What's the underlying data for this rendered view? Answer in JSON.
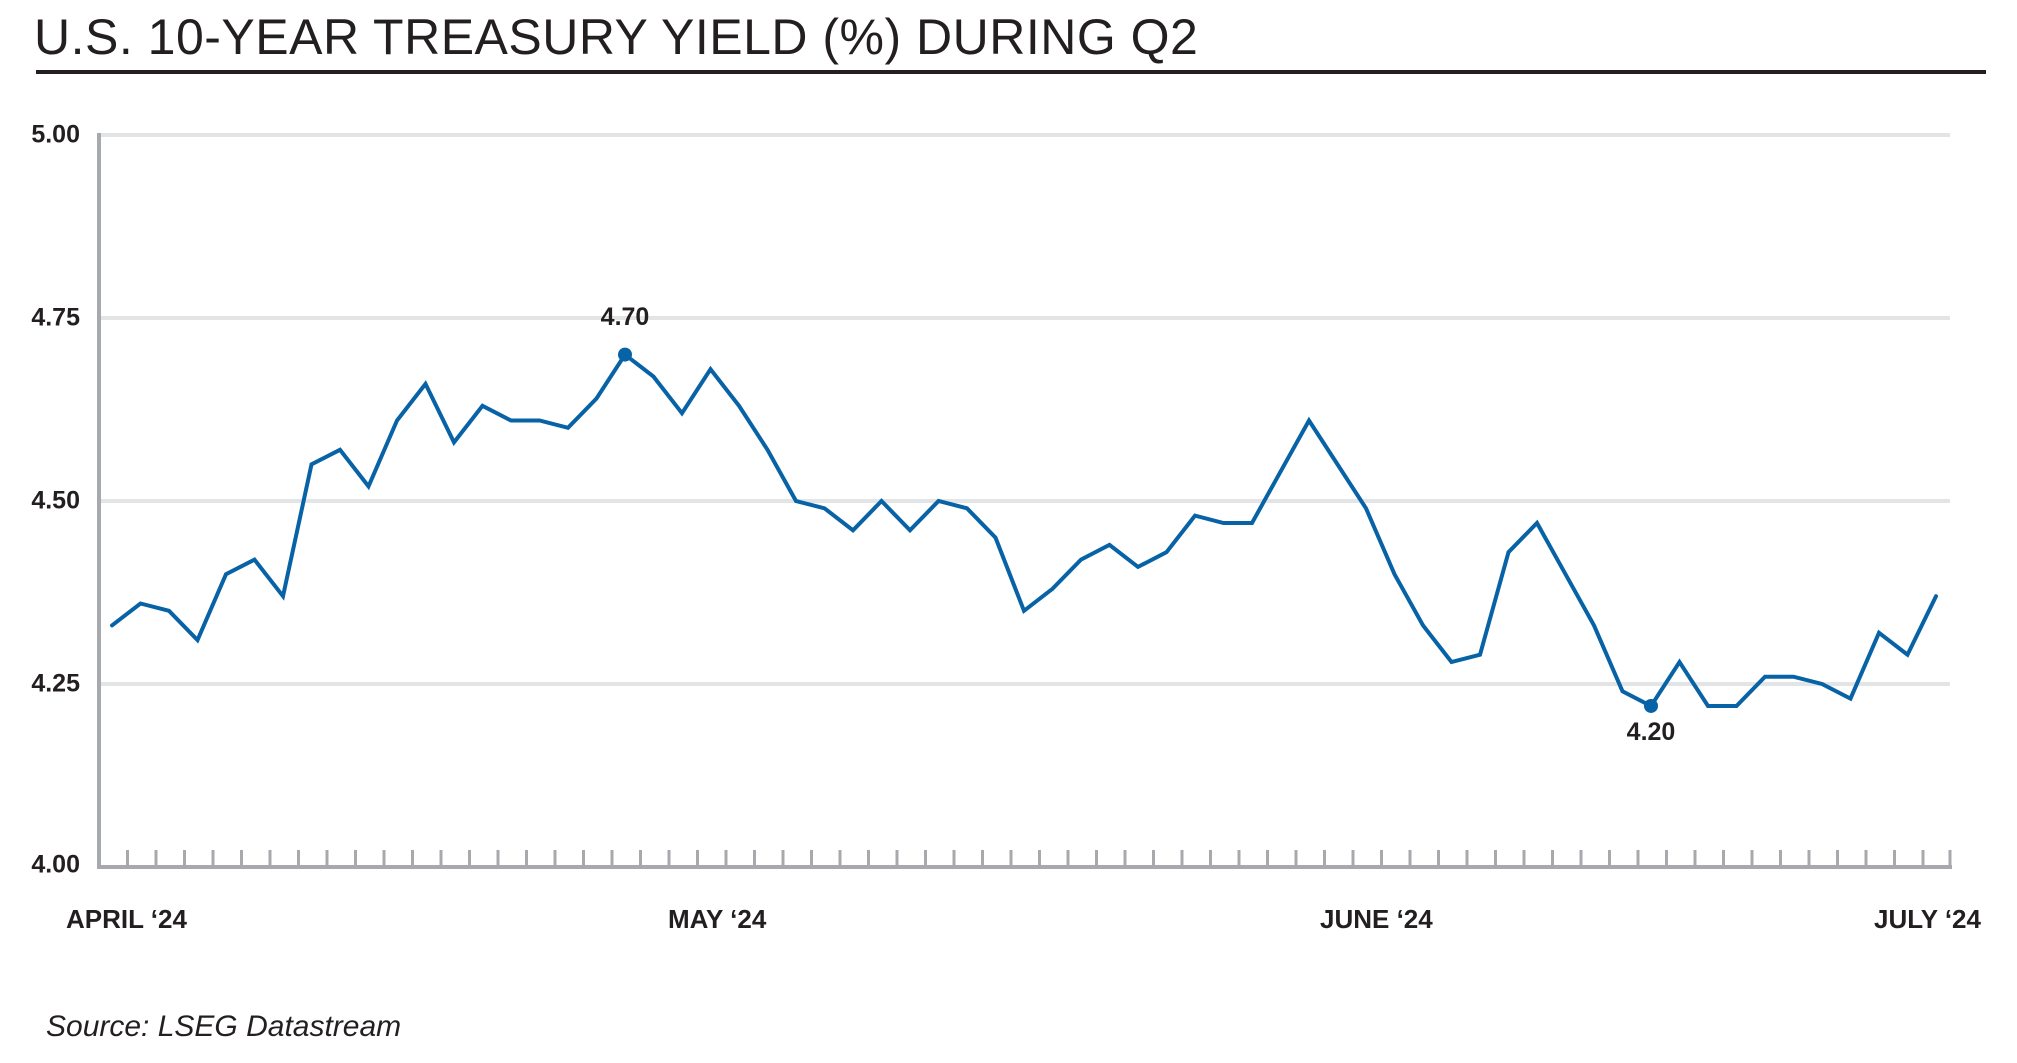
{
  "title": "U.S. 10-YEAR TREASURY YIELD (%) DURING Q2",
  "source": "Source: LSEG Datastream",
  "colors": {
    "line": "#0862a6",
    "axis": "#a7a9ac",
    "grid": "#e3e4e5",
    "text": "#231f20"
  },
  "y_axis": {
    "ticks": [
      "5.00",
      "4.75",
      "4.50",
      "4.25",
      "4.00"
    ]
  },
  "x_axis": {
    "labels": [
      "APRIL ‘24",
      "MAY ‘24",
      "JUNE ‘24",
      "JULY ‘24"
    ]
  },
  "annotations": {
    "high": "4.70",
    "low": "4.20"
  },
  "chart_data": {
    "type": "line",
    "title": "U.S. 10-YEAR TREASURY YIELD (%) DURING Q2",
    "xlabel": "",
    "ylabel": "",
    "ylim": [
      4.0,
      5.0
    ],
    "yticks": [
      4.0,
      4.25,
      4.5,
      4.75,
      5.0
    ],
    "x_tick_labels": [
      "APRIL ‘24",
      "MAY ‘24",
      "JUNE ‘24",
      "JULY ‘24"
    ],
    "grid": true,
    "legend": null,
    "source": "Source: LSEG Datastream",
    "series": [
      {
        "name": "U.S. 10-Year Treasury Yield (%)",
        "color": "#0862a6",
        "values": [
          4.33,
          4.36,
          4.35,
          4.31,
          4.4,
          4.42,
          4.37,
          4.55,
          4.57,
          4.52,
          4.61,
          4.66,
          4.58,
          4.63,
          4.61,
          4.61,
          4.6,
          4.64,
          4.7,
          4.67,
          4.62,
          4.68,
          4.63,
          4.57,
          4.5,
          4.49,
          4.46,
          4.5,
          4.46,
          4.5,
          4.49,
          4.45,
          4.35,
          4.38,
          4.42,
          4.44,
          4.41,
          4.43,
          4.48,
          4.47,
          4.47,
          4.54,
          4.61,
          4.55,
          4.49,
          4.4,
          4.33,
          4.28,
          4.29,
          4.43,
          4.47,
          4.4,
          4.33,
          4.24,
          4.22,
          4.28,
          4.22,
          4.22,
          4.26,
          4.26,
          4.25,
          4.23,
          4.32,
          4.29,
          4.37
        ]
      }
    ],
    "annotations": [
      {
        "label": "4.70",
        "index": 18,
        "value": 4.7,
        "position": "above"
      },
      {
        "label": "4.20",
        "index": 54,
        "value": 4.22,
        "position": "below"
      }
    ]
  }
}
